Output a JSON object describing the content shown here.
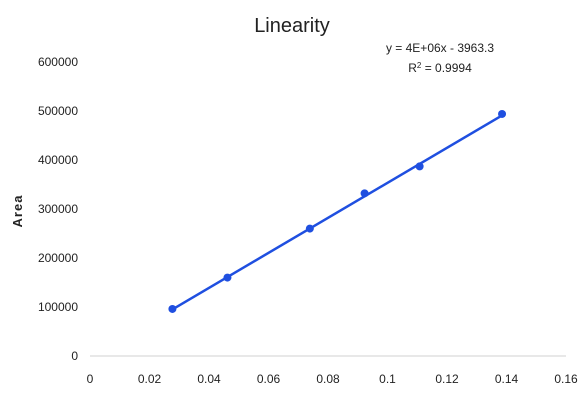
{
  "chart_data": {
    "type": "scatter",
    "title": "Linearity",
    "xlabel": "",
    "ylabel": "Area",
    "xlim": [
      0,
      0.16
    ],
    "ylim": [
      0,
      600000
    ],
    "x_ticks": [
      "0",
      "0.02",
      "0.04",
      "0.06",
      "0.08",
      "0.1",
      "0.12",
      "0.14",
      "0.16"
    ],
    "y_ticks": [
      "0",
      "100000",
      "200000",
      "300000",
      "400000",
      "500000",
      "600000"
    ],
    "series": [
      {
        "x": [
          0.0277,
          0.0462,
          0.0739,
          0.0923,
          0.1108,
          0.1385
        ],
        "y": [
          96000,
          160000,
          260000,
          332000,
          387000,
          494000
        ],
        "color": "#1f4fe0"
      }
    ],
    "trendline": {
      "type": "linear",
      "x_range": [
        0.0277,
        0.1385
      ],
      "y_range": [
        95000,
        491000
      ],
      "color": "#1f4fe0"
    },
    "annotations": {
      "equation": "y = 4E+06x - 3963.3",
      "r2_prefix": "R",
      "r2_sup": "2",
      "r2_suffix": " = 0.9994"
    },
    "grid": false,
    "legend": "none"
  }
}
